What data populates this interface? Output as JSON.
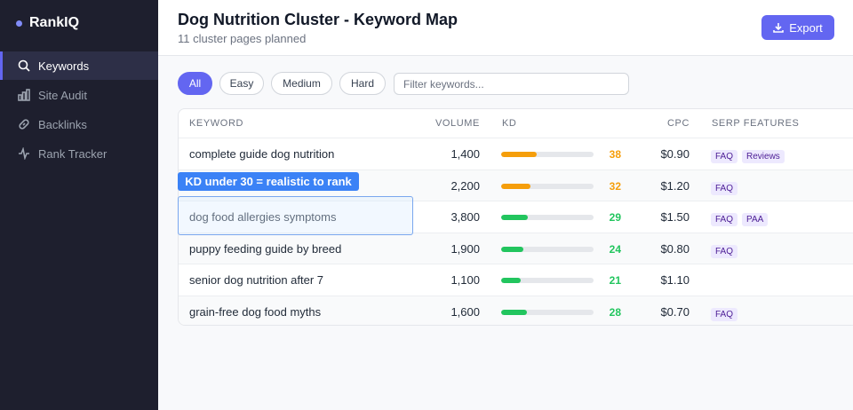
{
  "sidebar": {
    "brand": "RankIQ",
    "nav": [
      "Keywords",
      "Site Audit",
      "Backlinks",
      "Rank Tracker"
    ]
  },
  "header": {
    "title": "Dog Nutrition Cluster - Keyword Map",
    "subtitle": "11 cluster pages planned",
    "export": "Export"
  },
  "filters": {
    "pills": [
      "All",
      "Easy",
      "Medium",
      "Hard"
    ],
    "search_placeholder": "Filter keywords..."
  },
  "table": {
    "columns": [
      "KEYWORD",
      "VOLUME",
      "KD",
      "CPC",
      "SERP FEATURES"
    ],
    "rows": [
      {
        "keyword": "complete guide dog nutrition",
        "volume": "1,400",
        "kd": 38,
        "kd_color": "#f59e0b",
        "cpc": "$0.90",
        "serp": [
          "FAQ",
          "Reviews"
        ]
      },
      {
        "keyword": null,
        "volume": "2,200",
        "kd": 32,
        "kd_color": "#f59e0b",
        "cpc": "$1.20",
        "serp": [
          "FAQ"
        ]
      },
      {
        "keyword": "dog food allergies symptoms",
        "volume": "3,800",
        "kd": 29,
        "kd_color": "#22c55e",
        "cpc": "$1.50",
        "serp": [
          "FAQ",
          "PAA"
        ]
      },
      {
        "keyword": "puppy feeding guide by breed",
        "volume": "1,900",
        "kd": 24,
        "kd_color": "#22c55e",
        "cpc": "$0.80",
        "serp": [
          "FAQ"
        ]
      },
      {
        "keyword": "senior dog nutrition after 7",
        "volume": "1,100",
        "kd": 21,
        "kd_color": "#22c55e",
        "cpc": "$1.10",
        "serp": []
      },
      {
        "keyword": "grain-free dog food myths",
        "volume": "1,600",
        "kd": 28,
        "kd_color": "#22c55e",
        "cpc": "$0.70",
        "serp": [
          "FAQ"
        ]
      }
    ]
  },
  "annotation": {
    "label": "KD under 30 = realistic to rank"
  }
}
